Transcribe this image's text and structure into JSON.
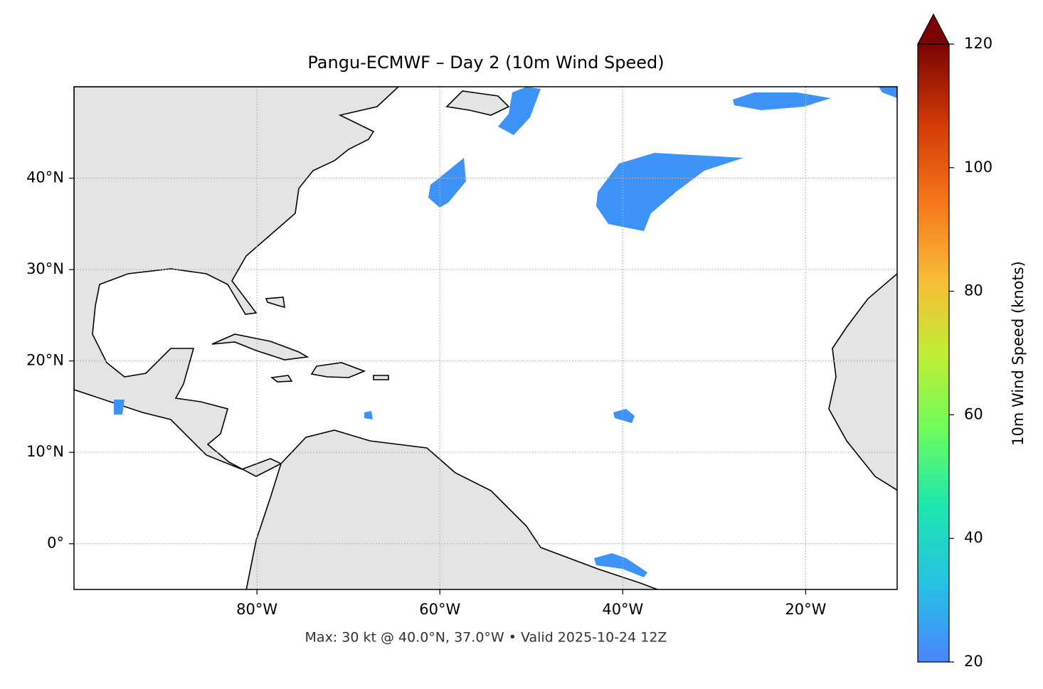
{
  "chart_data": {
    "type": "map",
    "title": "Pangu-ECMWF – Day 2 (10m Wind Speed)",
    "annotation": "Max: 30 kt @ 40.0°N, 37.0°W • Valid 2025-10-24 12Z",
    "xlim": [
      -100,
      -10
    ],
    "ylim": [
      -5,
      50
    ],
    "xticks": [
      {
        "value": -80,
        "label": "80°W"
      },
      {
        "value": -60,
        "label": "60°W"
      },
      {
        "value": -40,
        "label": "40°W"
      },
      {
        "value": -20,
        "label": "20°W"
      }
    ],
    "yticks": [
      {
        "value": 0,
        "label": "0°"
      },
      {
        "value": 10,
        "label": "10°N"
      },
      {
        "value": 20,
        "label": "20°N"
      },
      {
        "value": 30,
        "label": "30°N"
      },
      {
        "value": 40,
        "label": "40°N"
      }
    ],
    "grid": true,
    "colorbar": {
      "label": "10m Wind Speed (knots)",
      "lim": [
        20,
        120
      ],
      "ticks": [
        20,
        40,
        60,
        80,
        100,
        120
      ]
    }
  }
}
